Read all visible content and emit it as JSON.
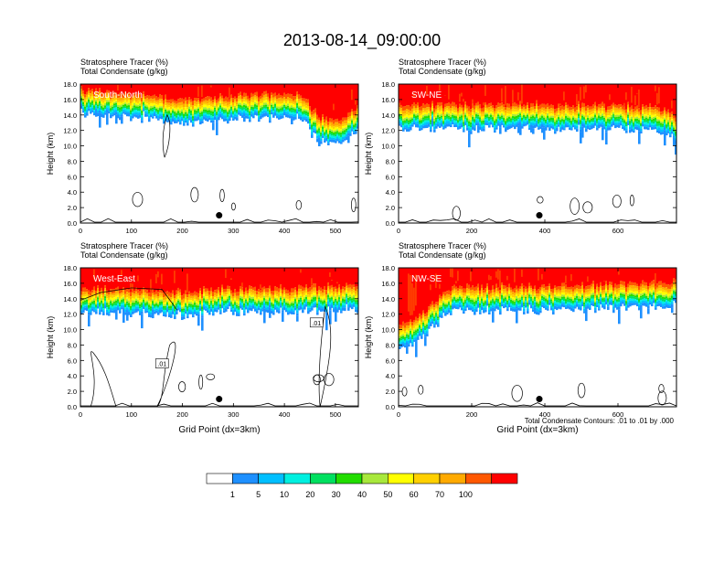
{
  "title": "2013-08-14_09:00:00",
  "colors": {
    "levels": [
      "#ffffff",
      "#1e90ff",
      "#00bfff",
      "#00f0e0",
      "#00e060",
      "#22dd00",
      "#a8e83c",
      "#ffff00",
      "#ffd000",
      "#ffaa00",
      "#ff5800",
      "#ff0000"
    ]
  },
  "colorbar": {
    "labels": [
      "1",
      "5",
      "10",
      "20",
      "30",
      "40",
      "50",
      "60",
      "70",
      "100"
    ]
  },
  "footnote": "Total Condensate Contours: .01 to .01 by .000",
  "chart_data": [
    {
      "type": "heatmap",
      "label": "South-North",
      "subtitle_1": "Stratosphere Tracer   (%)",
      "subtitle_2": "Total Condensate   (g/kg)",
      "ylabel": "Height (km)",
      "xlabel": "",
      "xlim": [
        0,
        545
      ],
      "ylim": [
        0,
        18
      ],
      "xticks": [
        0,
        100,
        200,
        300,
        400,
        500
      ],
      "yticks": [
        "0.0",
        "2.0",
        "4.0",
        "6.0",
        "8.0",
        "10.0",
        "12.0",
        "14.0",
        "16.0",
        "18.0"
      ],
      "marker": {
        "x": 272,
        "y": 1.0
      },
      "base_profile": [
        [
          0,
          14.0
        ],
        [
          100,
          13.5
        ],
        [
          150,
          13.2
        ],
        [
          200,
          12.8
        ],
        [
          260,
          13.0
        ],
        [
          300,
          13.4
        ],
        [
          360,
          13.5
        ],
        [
          420,
          13.6
        ],
        [
          440,
          13.0
        ],
        [
          455,
          11.5
        ],
        [
          470,
          10.5
        ],
        [
          500,
          10.2
        ],
        [
          520,
          10.5
        ],
        [
          545,
          12.0
        ]
      ],
      "contour_labels": []
    },
    {
      "type": "heatmap",
      "label": "SW-NE",
      "subtitle_1": "Stratosphere Tracer   (%)",
      "subtitle_2": "Total Condensate   (g/kg)",
      "ylabel": "Height (km)",
      "xlabel": "",
      "xlim": [
        0,
        760
      ],
      "ylim": [
        0,
        18
      ],
      "xticks": [
        0,
        200,
        400,
        600
      ],
      "yticks": [
        "0.0",
        "2.0",
        "4.0",
        "6.0",
        "8.0",
        "10.0",
        "12.0",
        "14.0",
        "16.0",
        "18.0"
      ],
      "marker": {
        "x": 385,
        "y": 1.0
      },
      "base_profile": [
        [
          0,
          12.3
        ],
        [
          150,
          12.1
        ],
        [
          300,
          12.2
        ],
        [
          450,
          12.1
        ],
        [
          600,
          12.0
        ],
        [
          700,
          11.8
        ],
        [
          760,
          11.0
        ]
      ],
      "contour_labels": []
    },
    {
      "type": "heatmap",
      "label": "West-East",
      "subtitle_1": "Stratosphere Tracer   (%)",
      "subtitle_2": "Total Condensate   (g/kg)",
      "ylabel": "Height (km)",
      "xlabel": "Grid Point (dx=3km)",
      "xlim": [
        0,
        545
      ],
      "ylim": [
        0,
        18
      ],
      "xticks": [
        0,
        100,
        200,
        300,
        400,
        500
      ],
      "yticks": [
        "0.0",
        "2.0",
        "4.0",
        "6.0",
        "8.0",
        "10.0",
        "12.0",
        "14.0",
        "16.0",
        "18.0"
      ],
      "marker": {
        "x": 272,
        "y": 1.0
      },
      "base_profile": [
        [
          0,
          12.2
        ],
        [
          100,
          12.0
        ],
        [
          180,
          11.6
        ],
        [
          230,
          11.8
        ],
        [
          300,
          12.1
        ],
        [
          400,
          12.2
        ],
        [
          470,
          12.3
        ],
        [
          545,
          12.4
        ]
      ],
      "contour_labels": [
        {
          "text": ".01",
          "x": 463,
          "y": 10.8
        },
        {
          "text": ".01",
          "x": 160,
          "y": 5.5
        }
      ]
    },
    {
      "type": "heatmap",
      "label": "NW-SE",
      "subtitle_1": "Stratosphere Tracer   (%)",
      "subtitle_2": "Total Condensate   (g/kg)",
      "ylabel": "Height (km)",
      "xlabel": "Grid Point (dx=3km)",
      "xlim": [
        0,
        760
      ],
      "ylim": [
        0,
        18
      ],
      "xticks": [
        0,
        200,
        400,
        600
      ],
      "yticks": [
        "0.0",
        "2.0",
        "4.0",
        "6.0",
        "8.0",
        "10.0",
        "12.0",
        "14.0",
        "16.0",
        "18.0"
      ],
      "marker": {
        "x": 385,
        "y": 1.0
      },
      "base_profile": [
        [
          0,
          7.5
        ],
        [
          40,
          8.0
        ],
        [
          80,
          9.5
        ],
        [
          120,
          11.5
        ],
        [
          160,
          12.3
        ],
        [
          300,
          12.4
        ],
        [
          500,
          12.5
        ],
        [
          700,
          12.8
        ],
        [
          760,
          13.0
        ]
      ],
      "contour_labels": []
    }
  ]
}
